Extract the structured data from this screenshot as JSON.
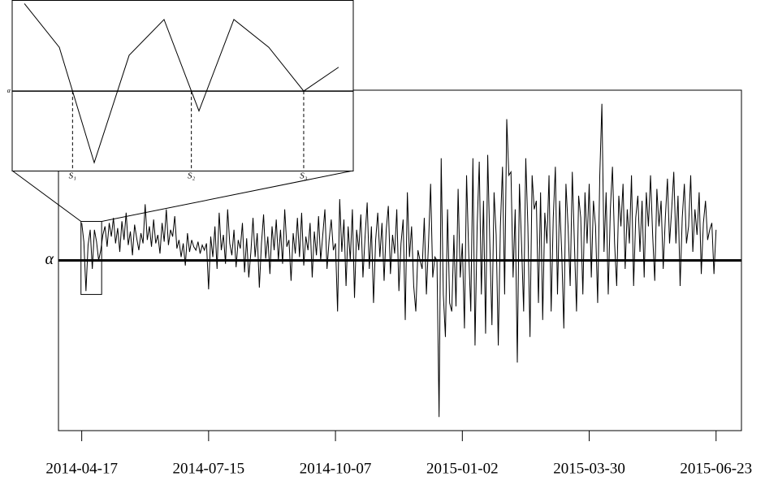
{
  "chart_data": {
    "type": "line",
    "color": "#000000",
    "xlim": [
      -11,
      312
    ],
    "ylim": [
      -1,
      1
    ],
    "xticks": [
      {
        "value": 0,
        "label": "2014-04-17"
      },
      {
        "value": 60,
        "label": "2014-07-15"
      },
      {
        "value": 120,
        "label": "2014-10-07"
      },
      {
        "value": 180,
        "label": "2015-01-02"
      },
      {
        "value": 240,
        "label": "2015-03-30"
      },
      {
        "value": 300,
        "label": "2015-06-23"
      }
    ],
    "threshold": {
      "label": "α",
      "value": 0
    },
    "inset": {
      "xlim": [
        -0.35,
        9.42
      ],
      "ylim": [
        -0.2,
        0.229
      ],
      "crossing_labels": [
        "S₁",
        "S₂",
        "S₃"
      ]
    },
    "values": [
      0.22,
      0.11,
      -0.18,
      0.09,
      0.18,
      -0.05,
      0.18,
      0.11,
      0.0,
      0.06,
      0.15,
      0.2,
      0.08,
      0.22,
      0.14,
      0.25,
      0.1,
      0.19,
      0.05,
      0.23,
      0.12,
      0.28,
      0.09,
      0.17,
      0.03,
      0.21,
      0.13,
      0.06,
      0.16,
      0.1,
      0.33,
      0.12,
      0.2,
      0.08,
      0.24,
      0.1,
      0.15,
      0.04,
      0.22,
      0.11,
      0.3,
      0.09,
      0.18,
      0.14,
      0.26,
      0.07,
      0.12,
      0.02,
      0.1,
      -0.03,
      0.16,
      0.05,
      0.12,
      0.08,
      0.06,
      0.11,
      0.04,
      0.09,
      0.06,
      0.1,
      -0.17,
      0.14,
      0.02,
      0.2,
      -0.05,
      0.28,
      0.06,
      0.15,
      -0.02,
      0.3,
      0.1,
      0.03,
      0.18,
      -0.04,
      0.12,
      0.07,
      0.22,
      -0.07,
      0.13,
      -0.1,
      0.05,
      0.25,
      0.02,
      0.16,
      -0.16,
      0.1,
      0.27,
      0.01,
      0.14,
      -0.08,
      0.2,
      0.06,
      0.24,
      0.0,
      0.18,
      -0.02,
      0.3,
      0.08,
      0.12,
      -0.12,
      0.16,
      0.04,
      0.25,
      0.02,
      0.28,
      -0.03,
      0.14,
      0.06,
      0.22,
      -0.1,
      0.17,
      0.03,
      0.26,
      0.0,
      0.15,
      0.3,
      -0.05,
      0.12,
      0.24,
      0.06,
      0.1,
      -0.3,
      0.36,
      0.05,
      0.24,
      -0.15,
      0.2,
      0.0,
      0.3,
      -0.22,
      0.18,
      0.06,
      0.27,
      -0.1,
      0.14,
      0.34,
      -0.05,
      0.2,
      -0.25,
      0.12,
      0.28,
      0.02,
      0.22,
      -0.12,
      0.18,
      0.32,
      -0.08,
      0.15,
      0.04,
      0.3,
      -0.18,
      0.1,
      0.24,
      -0.35,
      0.4,
      0.02,
      0.2,
      -0.15,
      -0.3,
      0.06,
      0.0,
      -0.05,
      0.25,
      -0.2,
      0.1,
      0.45,
      -0.1,
      0.02,
      0.0,
      -0.92,
      0.6,
      -0.2,
      -0.45,
      0.3,
      -0.25,
      -0.3,
      0.15,
      -0.27,
      0.42,
      -0.1,
      0.1,
      -0.4,
      0.5,
      0.05,
      -0.3,
      0.6,
      -0.5,
      0.2,
      0.58,
      -0.2,
      0.35,
      -0.43,
      0.62,
      0.1,
      -0.38,
      0.4,
      0.15,
      -0.5,
      0.2,
      0.55,
      -0.2,
      0.83,
      0.5,
      0.52,
      -0.1,
      0.3,
      -0.6,
      0.45,
      0.1,
      -0.3,
      0.6,
      0.2,
      -0.45,
      0.5,
      0.3,
      0.35,
      -0.25,
      0.4,
      -0.35,
      0.28,
      0.1,
      0.5,
      -0.3,
      0.25,
      0.55,
      -0.2,
      0.35,
      0.05,
      -0.4,
      0.45,
      0.2,
      -0.15,
      0.52,
      0.1,
      -0.3,
      0.38,
      0.25,
      -0.2,
      0.4,
      0.1,
      0.45,
      -0.1,
      0.35,
      0.2,
      -0.25,
      0.5,
      0.92,
      0.05,
      0.4,
      -0.2,
      0.3,
      0.55,
      0.1,
      -0.15,
      0.38,
      0.2,
      0.45,
      -0.05,
      0.3,
      0.1,
      0.5,
      -0.15,
      0.25,
      0.38,
      0.05,
      0.35,
      -0.1,
      0.4,
      0.2,
      0.5,
      0.15,
      -0.12,
      0.42,
      0.2,
      0.35,
      -0.05,
      0.25,
      0.48,
      0.1,
      0.3,
      0.52,
      0.1,
      0.38,
      -0.15,
      0.25,
      0.45,
      0.1,
      0.2,
      0.5,
      0.05,
      0.3,
      0.15,
      0.4,
      -0.08,
      0.22,
      0.35,
      0.12,
      0.18,
      0.22,
      -0.08,
      0.18
    ]
  }
}
